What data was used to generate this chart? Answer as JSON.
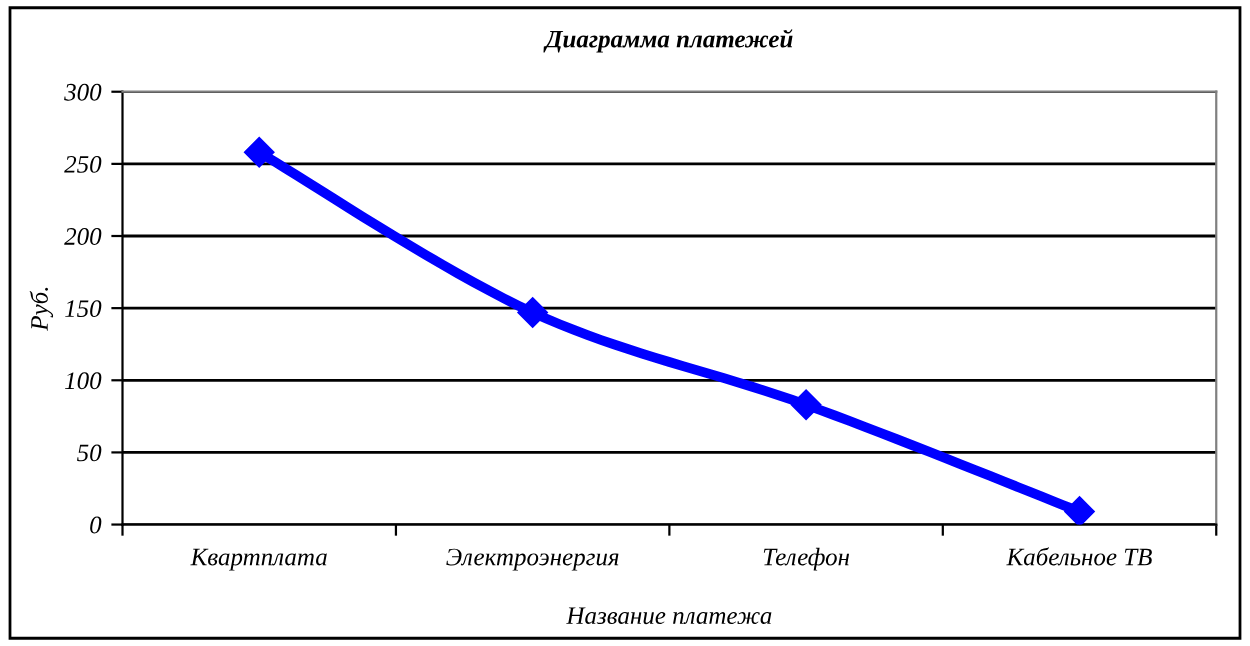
{
  "chart_data": {
    "type": "line",
    "title": "Диаграмма платежей",
    "xlabel": "Название платежа",
    "ylabel": "Руб.",
    "categories": [
      "Квартплата",
      "Электроэнергия",
      "Телефон",
      "Кабельное ТВ"
    ],
    "series": [
      {
        "color": "#0000ff",
        "values": [
          258,
          147,
          83,
          9
        ]
      }
    ],
    "ylim": [
      0,
      300
    ],
    "yticks": [
      0,
      50,
      100,
      150,
      200,
      250,
      300
    ],
    "grid": "y",
    "marker": "diamond",
    "line_style": "solid",
    "legend": false
  }
}
